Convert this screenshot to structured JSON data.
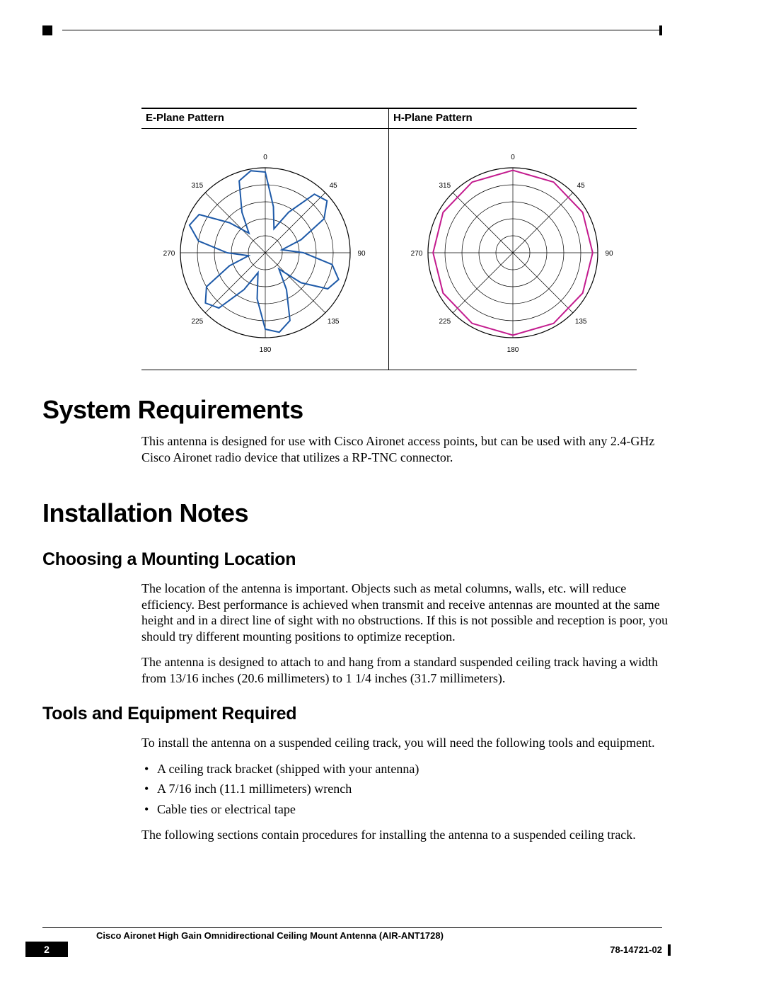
{
  "patterns": {
    "left_header": "E-Plane Pattern",
    "right_header": "H-Plane Pattern",
    "angle_labels": [
      "0",
      "45",
      "90",
      "135",
      "180",
      "225",
      "270",
      "315"
    ],
    "grid_color": "#000000",
    "e_trace_color": "#1e5aa8",
    "h_trace_color": "#c31b8e",
    "chart_radius": 120,
    "rings": 5,
    "e_plane": {
      "type": "polar-line",
      "points_deg_r": [
        [
          0,
          0.95
        ],
        [
          10,
          0.55
        ],
        [
          20,
          0.3
        ],
        [
          30,
          0.55
        ],
        [
          40,
          0.9
        ],
        [
          50,
          0.95
        ],
        [
          60,
          0.8
        ],
        [
          70,
          0.45
        ],
        [
          80,
          0.2
        ],
        [
          90,
          0.45
        ],
        [
          100,
          0.8
        ],
        [
          110,
          0.92
        ],
        [
          120,
          0.85
        ],
        [
          130,
          0.55
        ],
        [
          140,
          0.25
        ],
        [
          150,
          0.5
        ],
        [
          160,
          0.85
        ],
        [
          170,
          0.95
        ],
        [
          180,
          0.9
        ],
        [
          190,
          0.55
        ],
        [
          200,
          0.25
        ],
        [
          210,
          0.5
        ],
        [
          220,
          0.85
        ],
        [
          230,
          0.92
        ],
        [
          240,
          0.8
        ],
        [
          250,
          0.45
        ],
        [
          260,
          0.2
        ],
        [
          270,
          0.45
        ],
        [
          280,
          0.8
        ],
        [
          290,
          0.95
        ],
        [
          300,
          0.9
        ],
        [
          310,
          0.55
        ],
        [
          320,
          0.3
        ],
        [
          330,
          0.55
        ],
        [
          340,
          0.9
        ],
        [
          350,
          0.98
        ],
        [
          360,
          0.95
        ]
      ],
      "line_width": 2
    },
    "h_plane": {
      "type": "polar-line",
      "points_deg_r": [
        [
          0,
          0.97
        ],
        [
          30,
          0.96
        ],
        [
          60,
          0.95
        ],
        [
          90,
          0.94
        ],
        [
          120,
          0.95
        ],
        [
          150,
          0.96
        ],
        [
          180,
          0.97
        ],
        [
          210,
          0.96
        ],
        [
          240,
          0.95
        ],
        [
          270,
          0.94
        ],
        [
          300,
          0.95
        ],
        [
          330,
          0.96
        ],
        [
          360,
          0.97
        ]
      ],
      "line_width": 2
    }
  },
  "sections": {
    "sysreq_h": "System Requirements",
    "sysreq_p": "This antenna is designed for use with Cisco Aironet access points, but can be used with any 2.4-GHz Cisco Aironet radio device that utilizes a RP-TNC connector.",
    "install_h": "Installation Notes",
    "mount_h": "Choosing a Mounting Location",
    "mount_p1": "The location of the antenna is important. Objects such as metal columns, walls, etc. will reduce efficiency. Best performance is achieved when transmit and receive antennas are mounted at the same height and in a direct line of sight with no obstructions. If this is not possible and reception is poor, you should try different mounting positions to optimize reception.",
    "mount_p2": "The antenna is designed to attach to and hang from a standard suspended ceiling track having a width from 13/16 inches (20.6 millimeters) to 1 1/4 inches (31.7 millimeters).",
    "tools_h": "Tools and Equipment Required",
    "tools_p1": "To install the antenna on a suspended ceiling track, you will need the following tools and equipment.",
    "tools_items": [
      "A ceiling track bracket (shipped with your antenna)",
      "A 7/16 inch (11.1 millimeters) wrench",
      "Cable ties or electrical tape"
    ],
    "tools_p2": "The following sections contain procedures for installing the antenna to a suspended ceiling track."
  },
  "footer": {
    "title": "Cisco Aironet High Gain Omnidirectional Ceiling Mount Antenna (AIR-ANT1728)",
    "docnum": "78-14721-02",
    "page": "2"
  }
}
